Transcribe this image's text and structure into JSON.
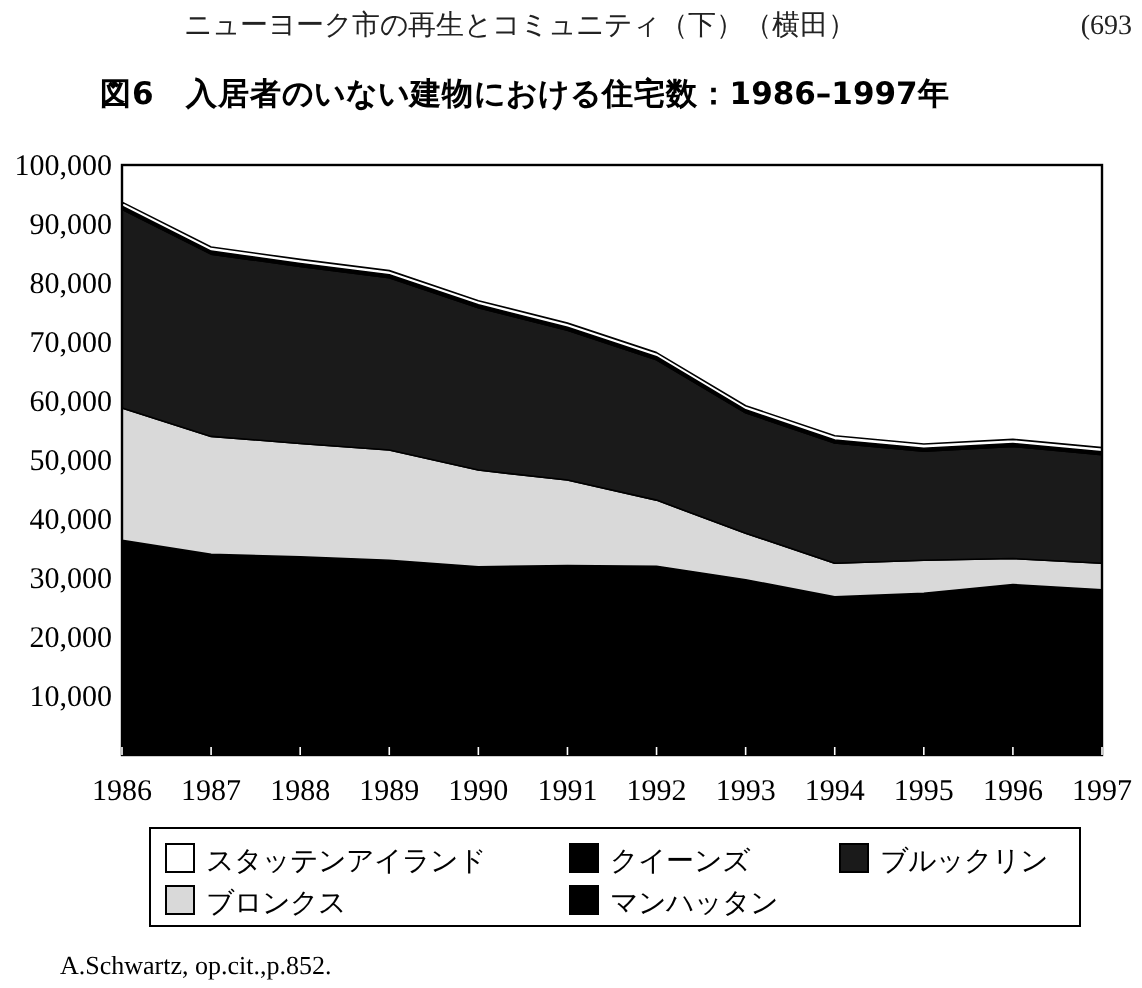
{
  "chart_data": {
    "type": "area",
    "stacked": true,
    "title": "図6　入居者のいない建物における住宅数：1986–1997年",
    "annotations": [
      "ニューヨーク市の再生とコミュニティ（下）（横田）",
      "(693",
      "A.Schwartz, op.cit.,p.852."
    ],
    "x": [
      1986,
      1987,
      1988,
      1989,
      1990,
      1991,
      1992,
      1993,
      1994,
      1995,
      1996,
      1997
    ],
    "series": [
      {
        "name": "マンハッタン",
        "color": "#000000",
        "values": [
          36400,
          34000,
          33600,
          33000,
          31900,
          32100,
          32000,
          29700,
          26800,
          27400,
          28900,
          28000
        ]
      },
      {
        "name": "ブロンクス",
        "color": "#d9d9d9",
        "values": [
          22400,
          20000,
          19200,
          18700,
          16400,
          14500,
          11200,
          7900,
          5700,
          5600,
          4400,
          4500
        ]
      },
      {
        "name": "ブルックリン",
        "color": "#1a1a1a",
        "values": [
          33700,
          30900,
          30000,
          29200,
          27500,
          25400,
          23800,
          20400,
          20400,
          18500,
          19000,
          18400
        ]
      },
      {
        "name": "クイーンズ",
        "color": "#000000",
        "values": [
          500,
          500,
          500,
          500,
          500,
          500,
          500,
          500,
          500,
          500,
          500,
          500
        ]
      },
      {
        "name": "スタッテンアイランド",
        "color": "#ffffff",
        "values": [
          700,
          700,
          700,
          700,
          700,
          700,
          700,
          700,
          700,
          700,
          700,
          700
        ]
      }
    ],
    "xlim": [
      1986,
      1997
    ],
    "xticks": [
      1986,
      1987,
      1988,
      1989,
      1990,
      1991,
      1992,
      1993,
      1994,
      1995,
      1996,
      1997
    ],
    "ylim": [
      0,
      100000
    ],
    "yticks": [
      {
        "value": 10000,
        "label": "10,000"
      },
      {
        "value": 20000,
        "label": "20,000"
      },
      {
        "value": 30000,
        "label": "30,000"
      },
      {
        "value": 40000,
        "label": "40,000"
      },
      {
        "value": 50000,
        "label": "50,000"
      },
      {
        "value": 60000,
        "label": "60,000"
      },
      {
        "value": 70000,
        "label": "70,000"
      },
      {
        "value": 80000,
        "label": "80,000"
      },
      {
        "value": 90000,
        "label": "90,000"
      },
      {
        "value": 100000,
        "label": "100,000"
      }
    ],
    "grid": false,
    "legend": "bottom"
  }
}
